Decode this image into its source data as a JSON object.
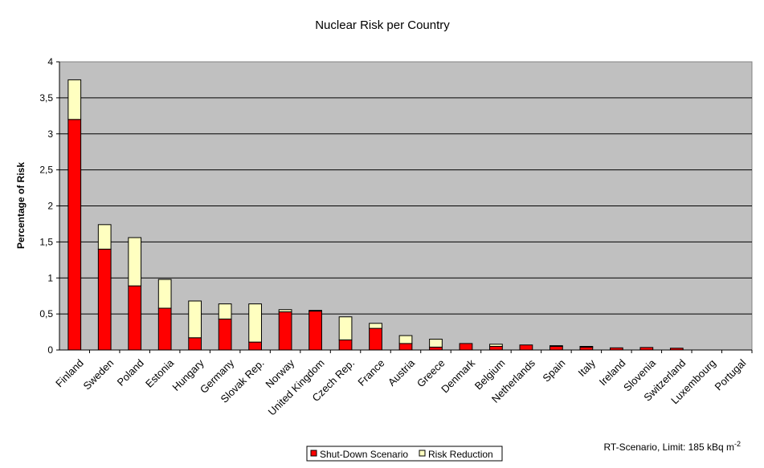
{
  "chart_data": {
    "type": "bar",
    "stacked": true,
    "title": "Nuclear Risk per Country",
    "xlabel": "",
    "ylabel": "Percentage of Risk",
    "ylim": [
      0,
      4
    ],
    "yticks": [
      "0",
      "0,5",
      "1",
      "1,5",
      "2",
      "2,5",
      "3",
      "3,5",
      "4"
    ],
    "grid": true,
    "categories": [
      "Finland",
      "Sweden",
      "Poland",
      "Estonia",
      "Hungary",
      "Germany",
      "Slovak Rep.",
      "Norway",
      "United Kingdom",
      "Czech Rep.",
      "France",
      "Austria",
      "Greece",
      "Denmark",
      "Belgium",
      "Netherlands",
      "Spain",
      "Italy",
      "Ireland",
      "Slovenia",
      "Switzerland",
      "Luxembourg",
      "Portugal"
    ],
    "series": [
      {
        "name": "Shut-Down Scenario",
        "color": "#ff0000",
        "values": [
          3.2,
          1.4,
          0.89,
          0.58,
          0.17,
          0.43,
          0.11,
          0.53,
          0.54,
          0.14,
          0.3,
          0.09,
          0.04,
          0.09,
          0.05,
          0.07,
          0.05,
          0.04,
          0.03,
          0.035,
          0.025,
          0.0,
          0.0
        ]
      },
      {
        "name": "Risk Reduction",
        "color": "#ffffc0",
        "values": [
          0.55,
          0.34,
          0.67,
          0.4,
          0.51,
          0.21,
          0.53,
          0.03,
          0.01,
          0.32,
          0.07,
          0.11,
          0.11,
          0.0,
          0.03,
          0.0,
          0.01,
          0.01,
          0.0,
          0.0,
          0.0,
          0.0,
          0.0
        ]
      }
    ],
    "legend_position": "bottom",
    "colors": {
      "plot_background": "#c0c0c0",
      "shutdown": "#ff0000",
      "reduction": "#ffffc0"
    },
    "note": {
      "text": "RT-Scenario, Limit: 185 kBq m",
      "superscript": "-2"
    }
  }
}
